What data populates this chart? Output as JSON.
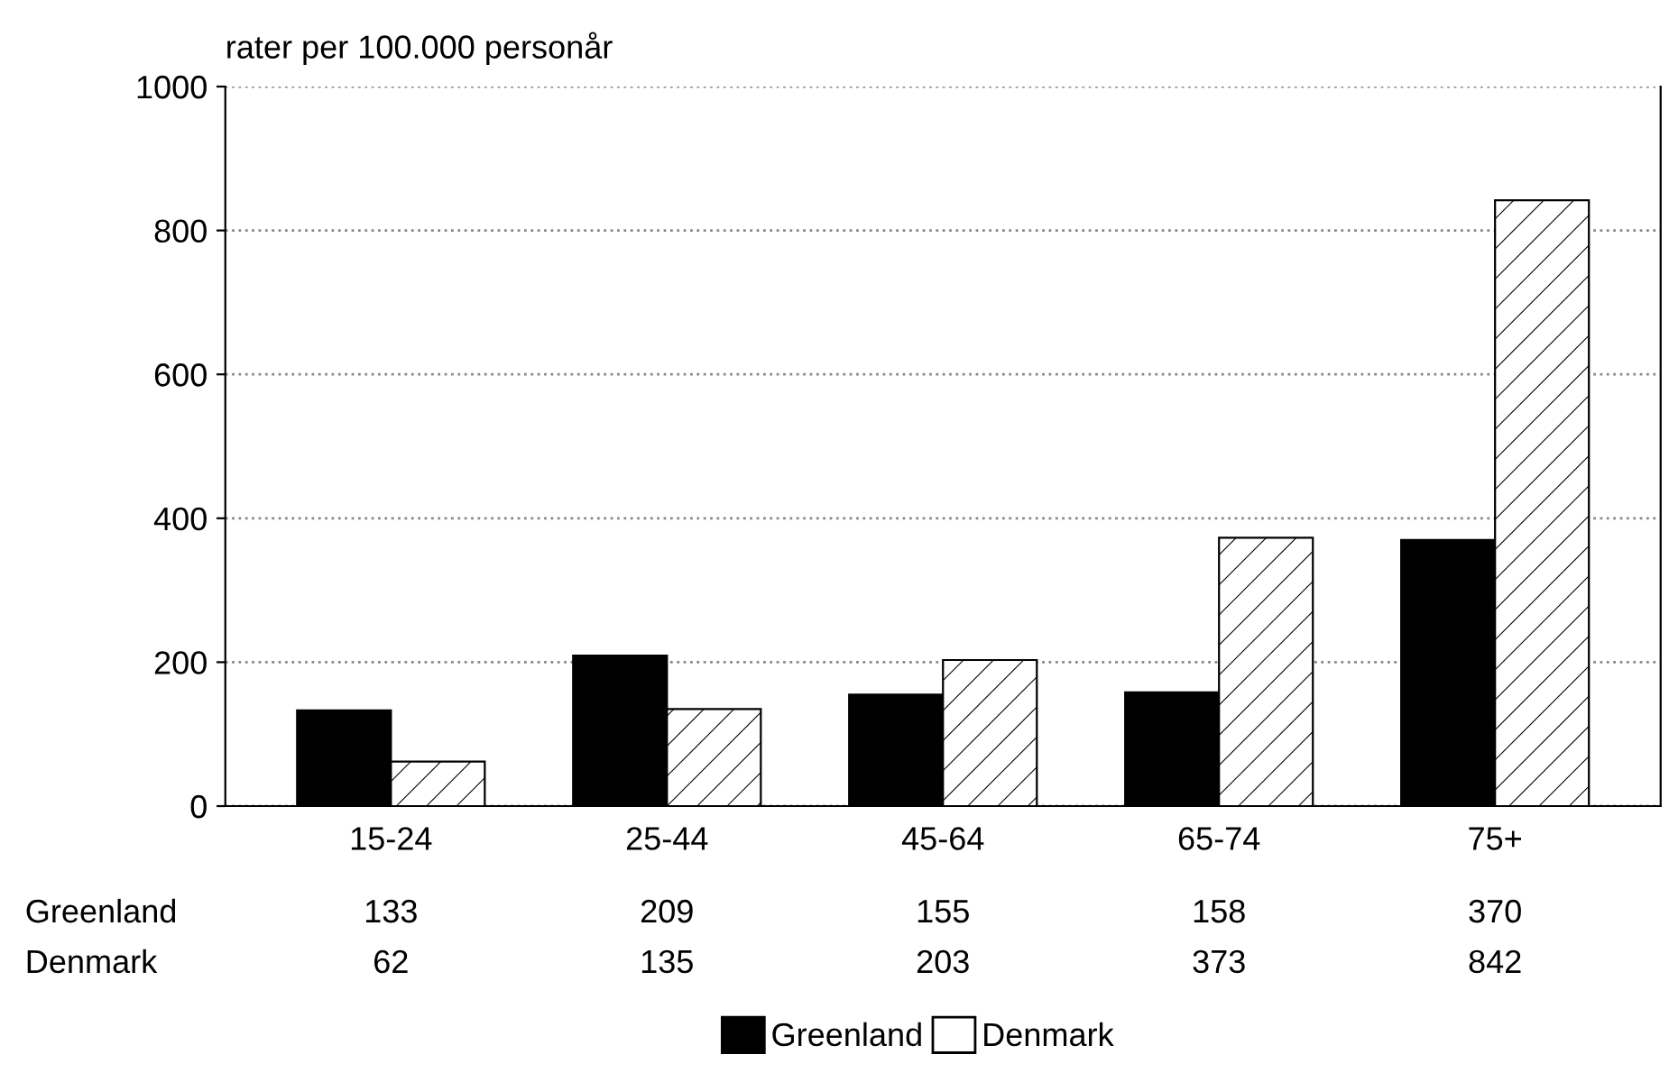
{
  "chart_data": {
    "type": "bar",
    "ylabel": "rater per 100.000 personår",
    "categories": [
      "15-24",
      "25-44",
      "45-64",
      "65-74",
      "75+"
    ],
    "series": [
      {
        "name": "Greenland",
        "color": "#000000",
        "values": [
          133,
          209,
          155,
          158,
          370
        ]
      },
      {
        "name": "Denmark",
        "color": "#ffffff",
        "values": [
          62,
          135,
          203,
          373,
          842
        ]
      }
    ],
    "ylim": [
      0,
      1000
    ],
    "yticks": [
      0,
      200,
      400,
      600,
      800,
      1000
    ],
    "grid": "y",
    "line_style": "dotted",
    "data_labels": true,
    "legend": "bottom"
  }
}
